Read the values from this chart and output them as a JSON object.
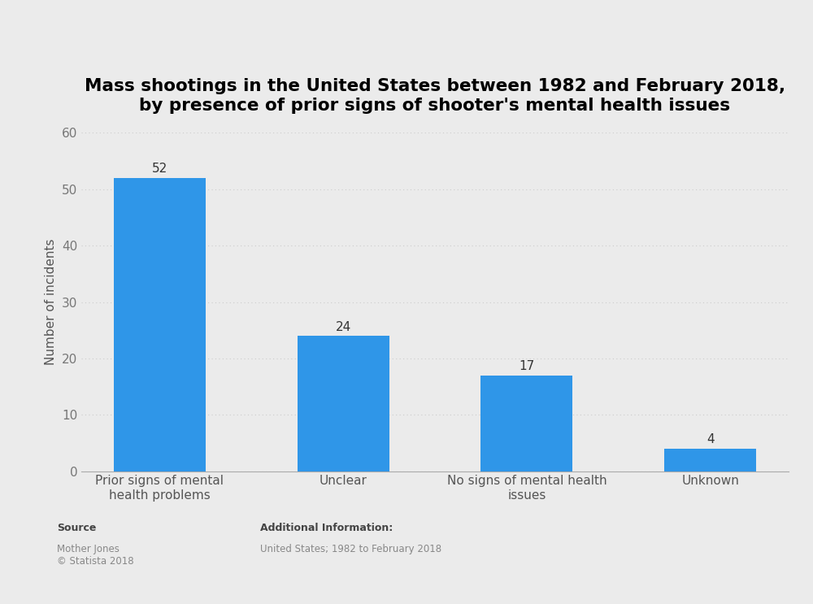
{
  "title_line1": "Mass shootings in the United States between 1982 and February 2018,",
  "title_line2": "by presence of prior signs of shooter's mental health issues",
  "categories": [
    "Prior signs of mental\nhealth problems",
    "Unclear",
    "No signs of mental health\nissues",
    "Unknown"
  ],
  "values": [
    52,
    24,
    17,
    4
  ],
  "bar_color": "#2f96e8",
  "ylabel": "Number of incidents",
  "ylim": [
    0,
    60
  ],
  "yticks": [
    0,
    10,
    20,
    30,
    40,
    50,
    60
  ],
  "background_color": "#ebebeb",
  "plot_background_color": "#ebebeb",
  "title_fontsize": 15.5,
  "label_fontsize": 11,
  "tick_fontsize": 11,
  "value_fontsize": 11,
  "source_label": "Source",
  "source_body": "Mother Jones\n© Statista 2018",
  "additional_label": "Additional Information:",
  "additional_body": "United States; 1982 to February 2018",
  "grid_color": "#cccccc",
  "spine_color": "#aaaaaa",
  "footer_text_color": "#888888"
}
